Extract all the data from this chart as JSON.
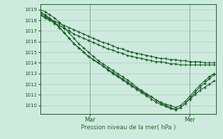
{
  "bg_color": "#ceeade",
  "grid_color": "#a8ccba",
  "line_color": "#1a5c28",
  "xlabel": "Pression niveau de la mer( hPa )",
  "xlabel_color": "#2d6a2d",
  "ylim": [
    1009.2,
    1019.5
  ],
  "yticks": [
    1010,
    1011,
    1012,
    1013,
    1014,
    1015,
    1016,
    1017,
    1018,
    1019
  ],
  "xlim": [
    0,
    85
  ],
  "vline_positions": [
    24,
    72
  ],
  "xtick_positions": [
    24,
    72
  ],
  "xtick_labels": [
    "Mar",
    "Mer"
  ],
  "series": [
    [
      1018.5,
      1018.3,
      1018.1,
      1017.9,
      1017.7,
      1017.5,
      1017.3,
      1017.1,
      1016.9,
      1016.7,
      1016.5,
      1016.3,
      1016.1,
      1015.9,
      1015.8,
      1015.6,
      1015.4,
      1015.3,
      1015.1,
      1015.0,
      1014.9,
      1014.8,
      1014.7,
      1014.6,
      1014.5,
      1014.4,
      1014.4,
      1014.3,
      1014.3,
      1014.2,
      1014.2,
      1014.1,
      1014.1,
      1014.1,
      1014.0,
      1014.0,
      1014.0
    ],
    [
      1018.5,
      1018.2,
      1018.0,
      1017.7,
      1017.5,
      1017.2,
      1017.0,
      1016.7,
      1016.5,
      1016.3,
      1016.1,
      1015.9,
      1015.7,
      1015.5,
      1015.3,
      1015.2,
      1015.0,
      1014.9,
      1014.7,
      1014.6,
      1014.5,
      1014.4,
      1014.3,
      1014.2,
      1014.1,
      1014.1,
      1014.0,
      1013.9,
      1013.9,
      1013.8,
      1013.8,
      1013.8,
      1013.8,
      1013.8,
      1013.8,
      1013.8,
      1013.8
    ],
    [
      1018.7,
      1018.4,
      1018.1,
      1017.7,
      1017.3,
      1016.8,
      1016.3,
      1015.8,
      1015.4,
      1015.0,
      1014.6,
      1014.3,
      1014.0,
      1013.7,
      1013.4,
      1013.1,
      1012.8,
      1012.5,
      1012.2,
      1011.9,
      1011.6,
      1011.3,
      1011.0,
      1010.8,
      1010.5,
      1010.3,
      1010.1,
      1010.0,
      1009.8,
      1010.0,
      1010.4,
      1010.9,
      1011.4,
      1011.9,
      1012.3,
      1012.7,
      1013.0
    ],
    [
      1018.8,
      1018.5,
      1018.2,
      1017.8,
      1017.3,
      1016.8,
      1016.3,
      1015.8,
      1015.4,
      1015.0,
      1014.6,
      1014.3,
      1014.0,
      1013.7,
      1013.3,
      1013.0,
      1012.7,
      1012.4,
      1012.1,
      1011.8,
      1011.5,
      1011.2,
      1010.9,
      1010.6,
      1010.3,
      1010.1,
      1009.9,
      1009.7,
      1009.6,
      1009.8,
      1010.2,
      1010.7,
      1011.2,
      1011.7,
      1012.1,
      1012.5,
      1012.9
    ],
    [
      1019.0,
      1018.8,
      1018.5,
      1018.2,
      1017.8,
      1017.3,
      1016.8,
      1016.3,
      1015.8,
      1015.4,
      1015.0,
      1014.6,
      1014.2,
      1013.9,
      1013.6,
      1013.3,
      1013.0,
      1012.7,
      1012.4,
      1012.1,
      1011.7,
      1011.4,
      1011.1,
      1010.8,
      1010.5,
      1010.2,
      1010.0,
      1009.8,
      1009.6,
      1009.8,
      1010.2,
      1010.6,
      1011.0,
      1011.4,
      1011.7,
      1012.0,
      1012.3
    ]
  ]
}
